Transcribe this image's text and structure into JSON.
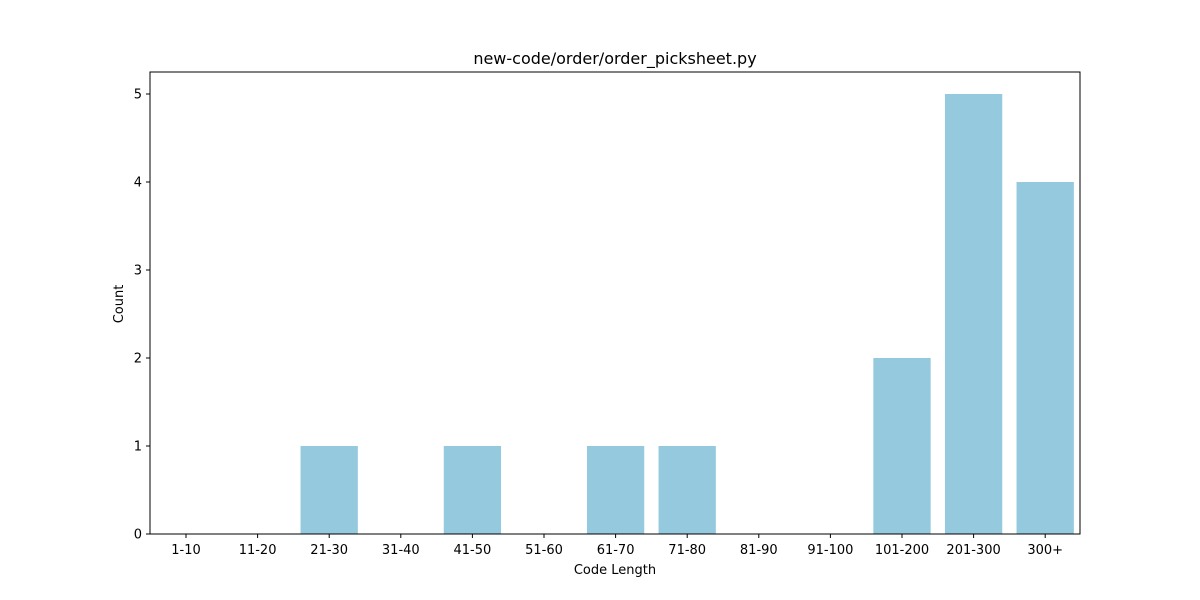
{
  "chart_data": {
    "type": "bar",
    "title": "new-code/order/order_picksheet.py",
    "xlabel": "Code Length",
    "ylabel": "Count",
    "categories": [
      "1-10",
      "11-20",
      "21-30",
      "31-40",
      "41-50",
      "51-60",
      "61-70",
      "71-80",
      "81-90",
      "91-100",
      "101-200",
      "201-300",
      "300+"
    ],
    "values": [
      0,
      0,
      1,
      0,
      1,
      0,
      1,
      1,
      0,
      0,
      2,
      5,
      4
    ],
    "ylim": [
      0,
      5.25
    ],
    "yticks": [
      0,
      1,
      2,
      3,
      4,
      5
    ],
    "grid": false,
    "legend": "none",
    "bar_color": "#95c9de"
  }
}
